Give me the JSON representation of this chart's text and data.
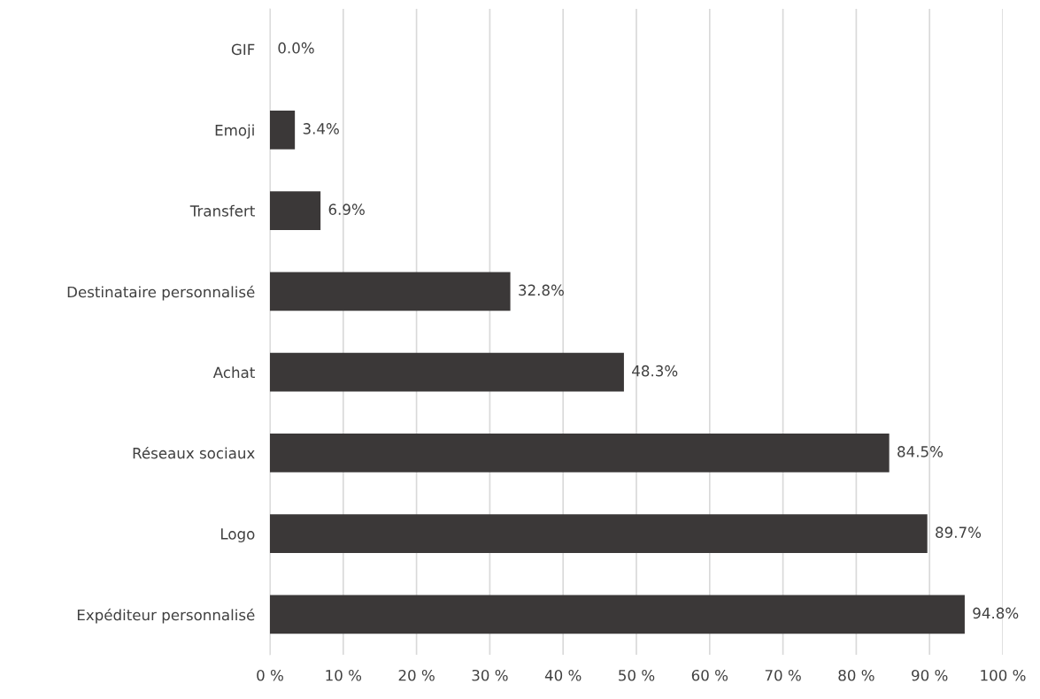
{
  "chart_data": {
    "type": "bar",
    "orientation": "horizontal",
    "categories": [
      "GIF",
      "Emoji",
      "Transfert",
      "Destinataire personnalisé",
      "Achat",
      "Réseaux sociaux",
      "Logo",
      "Expéditeur personnalisé"
    ],
    "values": [
      0.0,
      3.4,
      6.9,
      32.8,
      48.3,
      84.5,
      89.7,
      94.8
    ],
    "value_labels": [
      "0.0%",
      "3.4%",
      "6.9%",
      "32.8%",
      "48.3%",
      "84.5%",
      "89.7%",
      "94.8%"
    ],
    "color": "#3b3838",
    "xlim": [
      0,
      100
    ],
    "xticks": [
      {
        "value": 0,
        "label": "0 %"
      },
      {
        "value": 10,
        "label": "10 %"
      },
      {
        "value": 20,
        "label": "20 %"
      },
      {
        "value": 30,
        "label": "30 %"
      },
      {
        "value": 40,
        "label": "40 %"
      },
      {
        "value": 50,
        "label": "50 %"
      },
      {
        "value": 60,
        "label": "60 %"
      },
      {
        "value": 70,
        "label": "70 %"
      },
      {
        "value": 80,
        "label": "80 %"
      },
      {
        "value": 90,
        "label": "90 %"
      },
      {
        "value": 100,
        "label": "100 %"
      }
    ],
    "grid": "x"
  }
}
